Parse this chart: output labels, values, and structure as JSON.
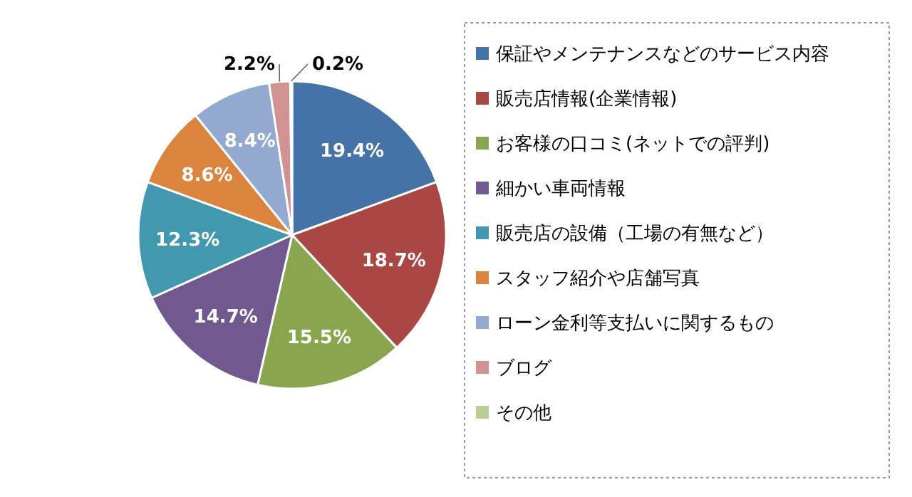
{
  "chart_data": {
    "type": "pie",
    "categories": [
      "保証やメンテナンスなどのサービス内容",
      "販売店情報(企業情報)",
      "お客様の口コミ(ネットでの評判)",
      "細かい車両情報",
      "販売店の設備（工場の有無など）",
      "スタッフ紹介や店舗写真",
      "ローン金利等支払いに関するもの",
      "ブログ",
      "その他"
    ],
    "values": [
      19.4,
      18.7,
      15.5,
      14.7,
      12.3,
      8.6,
      8.4,
      2.2,
      0.2
    ],
    "colors": [
      "#4572a7",
      "#aa4643",
      "#89a54e",
      "#71588f",
      "#4198af",
      "#db843d",
      "#93a9cf",
      "#d19392",
      "#b9cd96"
    ],
    "value_labels": [
      "19.4%",
      "18.7%",
      "15.5%",
      "14.7%",
      "12.3%",
      "8.6%",
      "8.4%",
      "2.2%",
      "0.2%"
    ],
    "legend": "right"
  }
}
